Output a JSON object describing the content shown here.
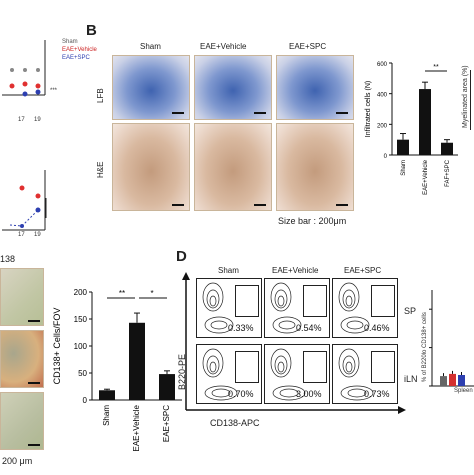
{
  "panel_b": {
    "letter": "B",
    "columns": [
      "Sham",
      "EAE+Vehicle",
      "EAE+SPC"
    ],
    "rows": [
      "LFB",
      "H&E"
    ],
    "size_bar": "Size bar : 200μm"
  },
  "panel_d": {
    "letter": "D",
    "columns": [
      "Sham",
      "EAE+Vehicle",
      "EAE+SPC"
    ],
    "row_sp": {
      "label": "SP",
      "values": [
        "0.33%",
        "0.54%",
        "0.46%"
      ]
    },
    "row_iln": {
      "label": "iLN",
      "values": [
        "0.70%",
        "3.00%",
        "0.73%"
      ]
    },
    "y_axis": "B220-PE",
    "x_axis": "CD138-APC",
    "side_ylabel": "% of B220lo CD138+ cells",
    "side_xlabel": "Spleen"
  },
  "panel_a_partial": {
    "legend": [
      "Sham",
      "EAE+Vehicle",
      "EAE+SPC"
    ],
    "ticks_1": [
      "17",
      "19"
    ],
    "ticks_2": [
      "17",
      "19"
    ],
    "stars": "***",
    "label_c": "138",
    "scale": "200 μm"
  },
  "chart_data": [
    {
      "type": "bar",
      "categories": [
        "Sham",
        "EAE+Vehicle",
        "FAF+SPC"
      ],
      "values": [
        100,
        430,
        80
      ],
      "errors": [
        40,
        45,
        20
      ],
      "ylabel": "Infiltrated cells (N)",
      "ylim": [
        0,
        600
      ],
      "yticks": [
        "0",
        "200",
        "400",
        "600"
      ],
      "significance": "**",
      "colors": [
        "#111111",
        "#111111",
        "#111111"
      ]
    },
    {
      "type": "bar",
      "categories": [
        "Sham",
        "EAE+Vehicle",
        "EAE+SPC"
      ],
      "values": [
        18,
        143,
        48
      ],
      "errors": [
        2,
        18,
        6
      ],
      "ylabel": "CD138+ Cells/FOV",
      "ylim": [
        0,
        200
      ],
      "yticks": [
        "0",
        "50",
        "100",
        "150",
        "200"
      ],
      "significance": [
        "**",
        "*"
      ],
      "colors": [
        "#111111",
        "#111111",
        "#111111"
      ]
    },
    {
      "type": "bar",
      "categories": [
        "Spleen"
      ],
      "series": [
        {
          "values": [
            0.45
          ],
          "color": "#666666"
        },
        {
          "values": [
            0.55
          ],
          "color": "#d43030"
        },
        {
          "values": [
            0.5
          ],
          "color": "#2d3fb0"
        }
      ],
      "xlabel": "Spleen",
      "ylabel": "% of B220lo CD138+ cells"
    }
  ],
  "partial_right_label": "Myelinated area (%)"
}
